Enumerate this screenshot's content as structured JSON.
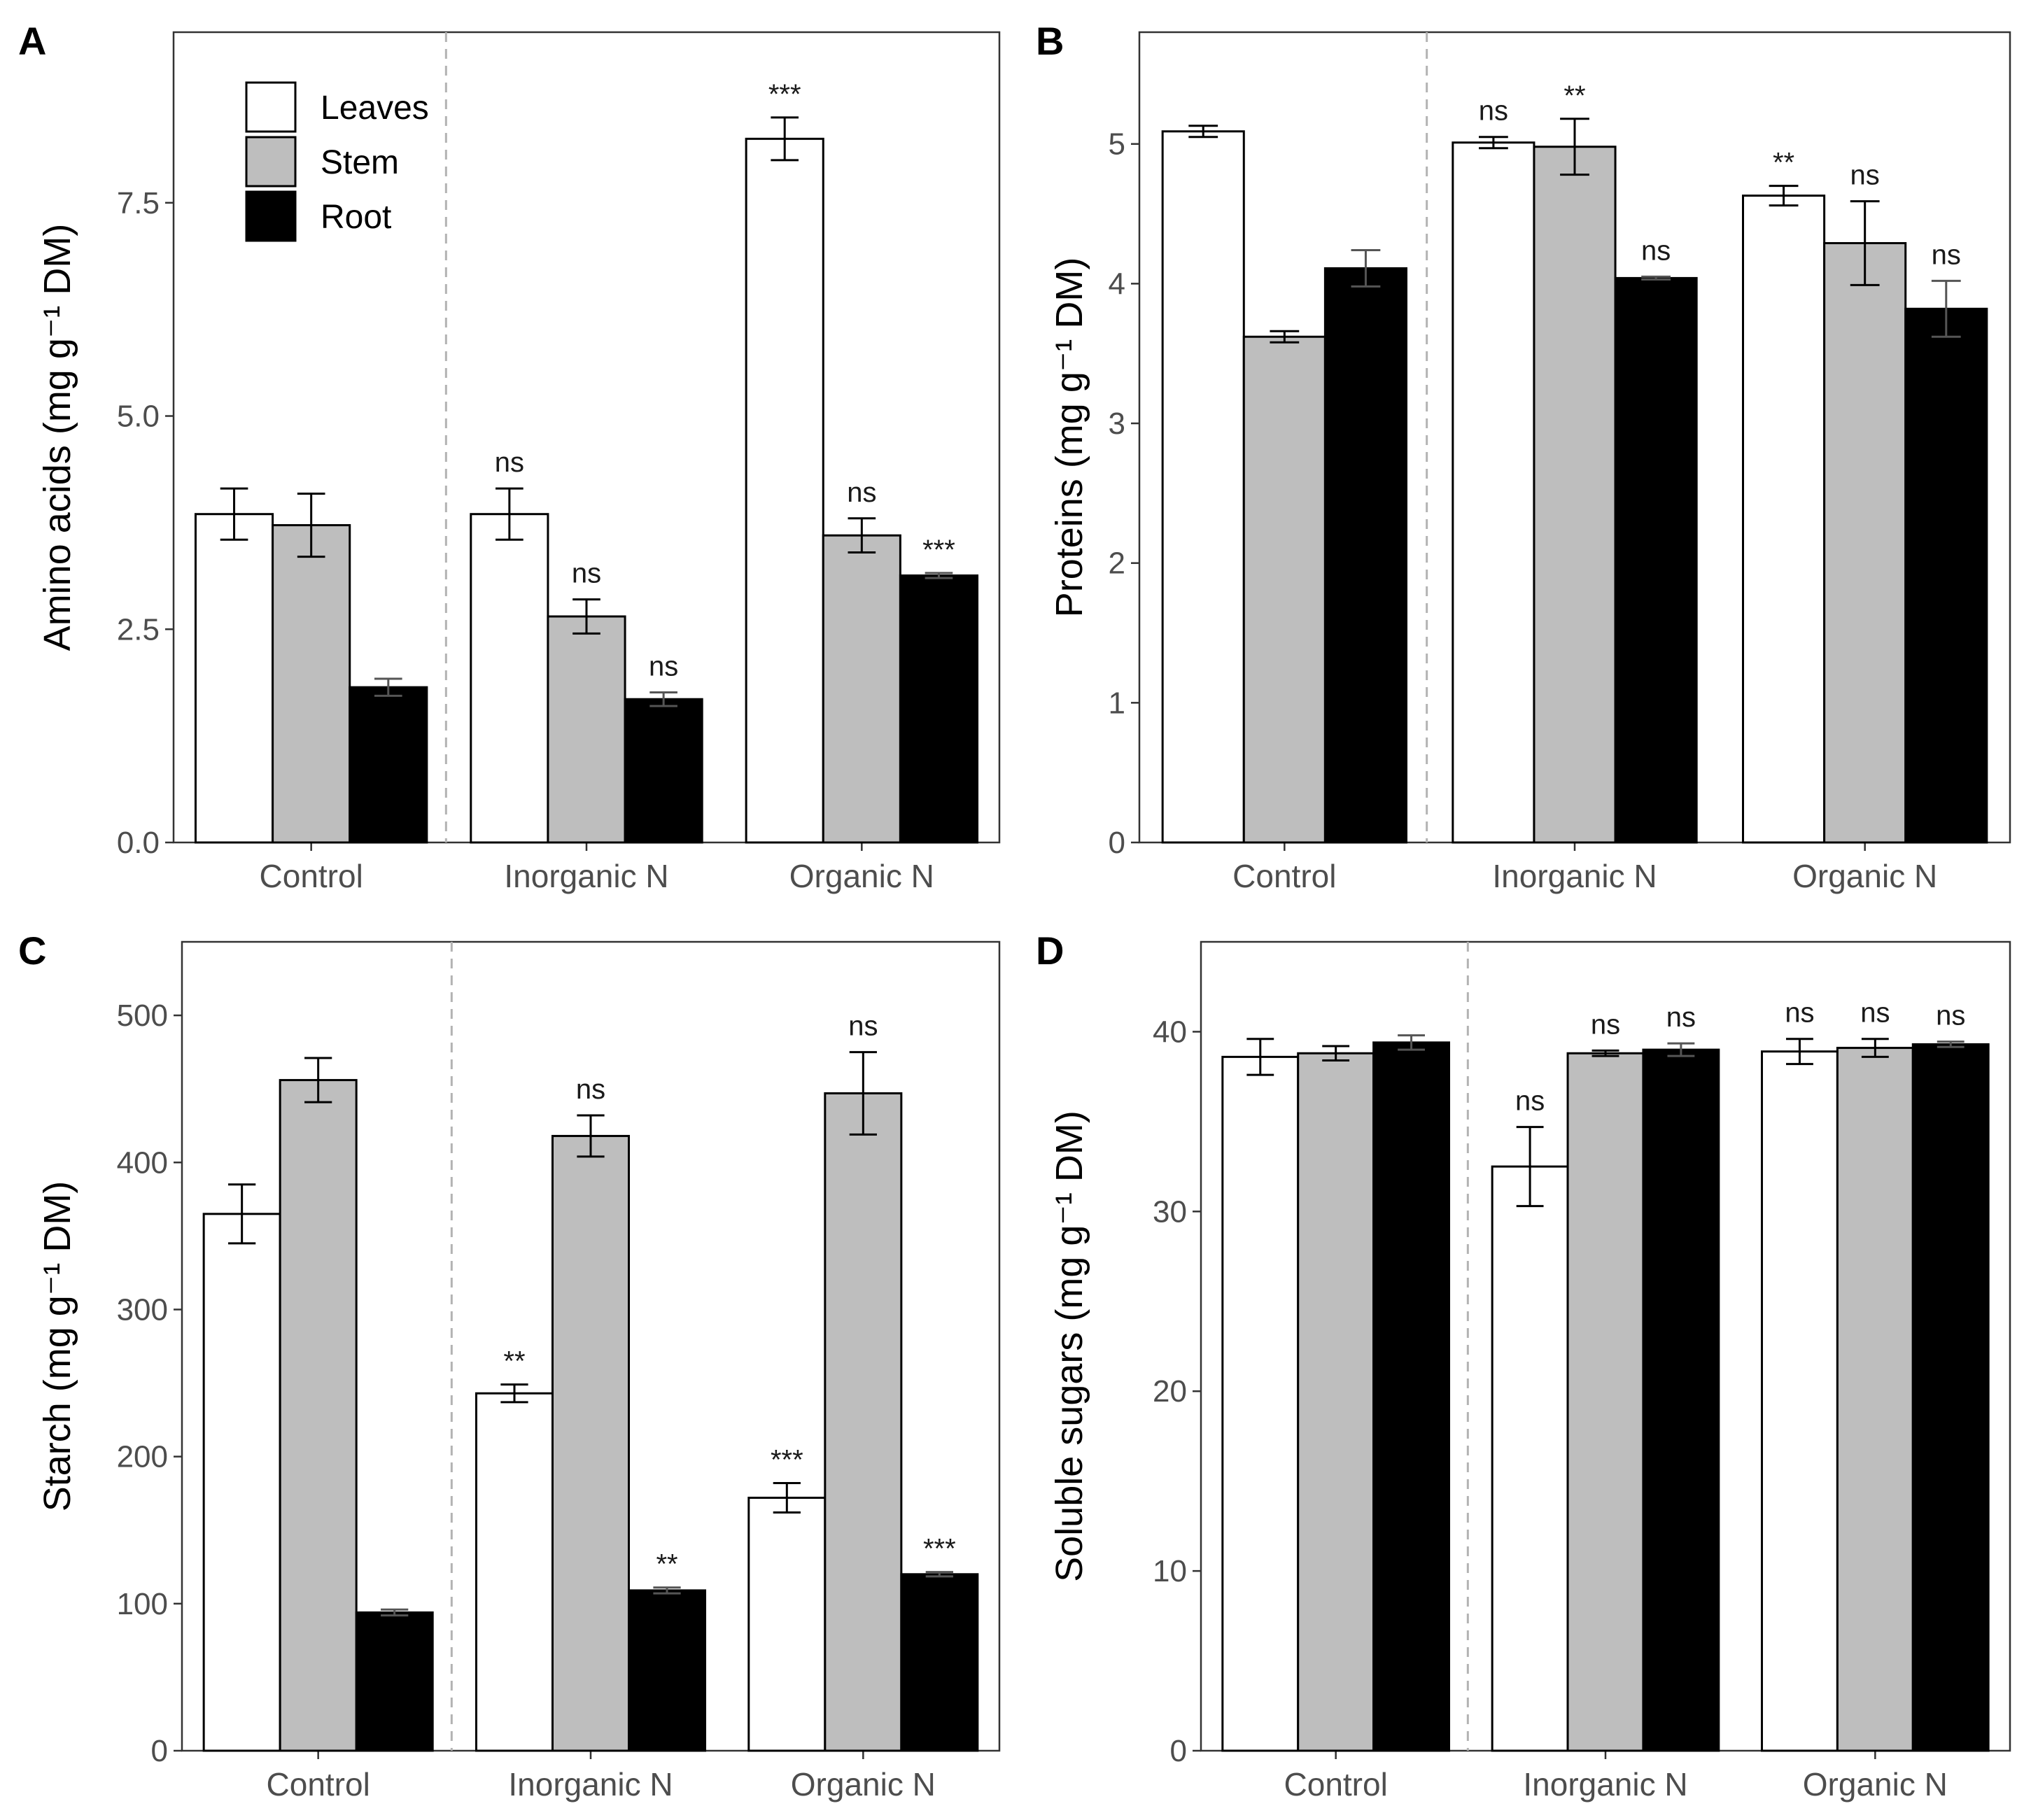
{
  "chart_data": [
    {
      "panel": "A",
      "type": "bar",
      "ylabel": "Amino acids",
      "yunit": "(mg g⁻¹ DM)",
      "ylim": [
        0,
        9.5
      ],
      "yticks": [
        0,
        2.5,
        5,
        7.5
      ],
      "ytick_labels": [
        "0.0",
        "2.5",
        "5.0",
        "7.5"
      ],
      "categories": [
        "Control",
        "Inorganic N",
        "Organic N"
      ],
      "separator_after": 0,
      "series": [
        {
          "name": "Leaves",
          "color": "#ffffff",
          "values": [
            3.85,
            3.85,
            8.25
          ],
          "errors": [
            0.3,
            0.3,
            0.25
          ],
          "sig": [
            "",
            "ns",
            "***"
          ]
        },
        {
          "name": "Stem",
          "color": "#bebebe",
          "values": [
            3.72,
            2.65,
            3.6
          ],
          "errors": [
            0.37,
            0.2,
            0.2
          ],
          "sig": [
            "",
            "ns",
            "ns"
          ]
        },
        {
          "name": "Root",
          "color": "#000000",
          "values": [
            1.82,
            1.68,
            3.13
          ],
          "errors": [
            0.1,
            0.08,
            0.03
          ],
          "sig": [
            "",
            "ns",
            "***"
          ]
        }
      ],
      "legend": {
        "position": "top-left",
        "entries": [
          "Leaves",
          "Stem",
          "Root"
        ]
      }
    },
    {
      "panel": "B",
      "type": "bar",
      "ylabel": "Proteins",
      "yunit": "(mg g⁻¹ DM)",
      "ylim": [
        0,
        5.8
      ],
      "yticks": [
        0,
        1,
        2,
        3,
        4,
        5
      ],
      "ytick_labels": [
        "0",
        "1",
        "2",
        "3",
        "4",
        "5"
      ],
      "categories": [
        "Control",
        "Inorganic N",
        "Organic N"
      ],
      "separator_after": 0,
      "series": [
        {
          "name": "Leaves",
          "color": "#ffffff",
          "values": [
            5.09,
            5.01,
            4.63
          ],
          "errors": [
            0.04,
            0.04,
            0.07
          ],
          "sig": [
            "",
            "ns",
            "**"
          ]
        },
        {
          "name": "Stem",
          "color": "#bebebe",
          "values": [
            3.62,
            4.98,
            4.29
          ],
          "errors": [
            0.04,
            0.2,
            0.3
          ],
          "sig": [
            "",
            "**",
            "ns"
          ]
        },
        {
          "name": "Root",
          "color": "#000000",
          "values": [
            4.11,
            4.04,
            3.82
          ],
          "errors": [
            0.13,
            0.01,
            0.2
          ],
          "sig": [
            "",
            "ns",
            "ns"
          ]
        }
      ]
    },
    {
      "panel": "C",
      "type": "bar",
      "ylabel": "Starch",
      "yunit": "(mg g⁻¹ DM)",
      "ylim": [
        0,
        550
      ],
      "yticks": [
        0,
        100,
        200,
        300,
        400,
        500
      ],
      "ytick_labels": [
        "0",
        "100",
        "200",
        "300",
        "400",
        "500"
      ],
      "categories": [
        "Control",
        "Inorganic N",
        "Organic N"
      ],
      "separator_after": 0,
      "series": [
        {
          "name": "Leaves",
          "color": "#ffffff",
          "values": [
            365,
            243,
            172
          ],
          "errors": [
            20,
            6,
            10
          ],
          "sig": [
            "",
            "**",
            "***"
          ]
        },
        {
          "name": "Stem",
          "color": "#bebebe",
          "values": [
            456,
            418,
            447
          ],
          "errors": [
            15,
            14,
            28
          ],
          "sig": [
            "",
            "ns",
            "ns"
          ]
        },
        {
          "name": "Root",
          "color": "#000000",
          "values": [
            94,
            109,
            120
          ],
          "errors": [
            2,
            2,
            1.5
          ],
          "sig": [
            "",
            "**",
            "***"
          ]
        }
      ]
    },
    {
      "panel": "D",
      "type": "bar",
      "ylabel": "Soluble sugars",
      "yunit": "(mg g⁻¹ DM)",
      "ylim": [
        0,
        45
      ],
      "yticks": [
        0,
        10,
        20,
        30,
        40
      ],
      "ytick_labels": [
        "0",
        "10",
        "20",
        "30",
        "40"
      ],
      "categories": [
        "Control",
        "Inorganic N",
        "Organic N"
      ],
      "separator_after": 0,
      "series": [
        {
          "name": "Leaves",
          "color": "#ffffff",
          "values": [
            38.6,
            32.5,
            38.9
          ],
          "errors": [
            1.0,
            2.2,
            0.7
          ],
          "sig": [
            "",
            "ns",
            "ns"
          ]
        },
        {
          "name": "Stem",
          "color": "#bebebe",
          "values": [
            38.8,
            38.8,
            39.1
          ],
          "errors": [
            0.4,
            0.15,
            0.5
          ],
          "sig": [
            "",
            "ns",
            "ns"
          ]
        },
        {
          "name": "Root",
          "color": "#000000",
          "values": [
            39.4,
            39.0,
            39.3
          ],
          "errors": [
            0.4,
            0.35,
            0.15
          ],
          "sig": [
            "",
            "ns",
            "ns"
          ]
        }
      ]
    }
  ]
}
